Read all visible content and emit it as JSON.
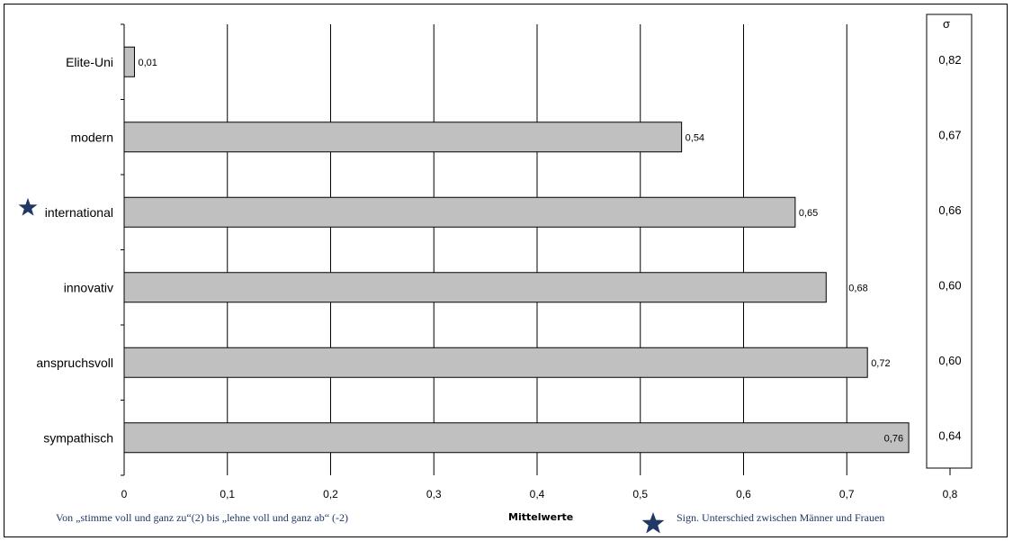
{
  "chart_data": {
    "type": "bar",
    "orientation": "horizontal",
    "categories": [
      "Elite-Uni",
      "modern",
      "international",
      "innovativ",
      "anspruchsvoll",
      "sympathisch"
    ],
    "values": [
      0.01,
      0.54,
      0.65,
      0.68,
      0.72,
      0.76
    ],
    "value_labels": [
      "0,01",
      "0,54",
      "0,65",
      "0,68",
      "0,72",
      "0,76"
    ],
    "significant": [
      false,
      false,
      true,
      false,
      false,
      false
    ],
    "xlabel": "Mittelwerte",
    "xlim": [
      0,
      0.8
    ],
    "x_ticks": [
      0,
      0.1,
      0.2,
      0.3,
      0.4,
      0.5,
      0.6,
      0.7,
      0.8
    ],
    "x_tick_labels": [
      "0",
      "0,1",
      "0,2",
      "0,3",
      "0,4",
      "0,5",
      "0,6",
      "0,7",
      "0,8"
    ],
    "grid": "vertical",
    "sigma": {
      "header": "σ",
      "values": [
        "0,82",
        "0,67",
        "0,66",
        "0,60",
        "0,60",
        "0,64"
      ]
    },
    "footnote_scale": "Von „stimme voll und ganz zu“(2) bis „lehne voll und ganz ab“ (-2)",
    "legend_significance": "Sign. Unterschied zwischen Männer und Frauen",
    "colors": {
      "bar_fill": "#c0c0c0",
      "bar_stroke": "#000000",
      "star": "#1f3864",
      "footnote_text": "#1f3864"
    }
  }
}
